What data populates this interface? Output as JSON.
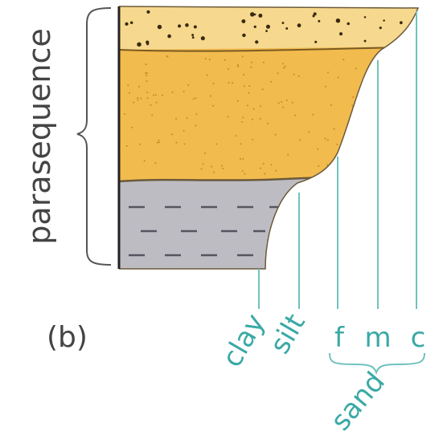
{
  "side_label": "parasequence",
  "panel_label": "(b)",
  "grain_sizes": [
    "clay",
    "silt",
    "f",
    "m",
    "c"
  ],
  "group_label": "sand"
}
